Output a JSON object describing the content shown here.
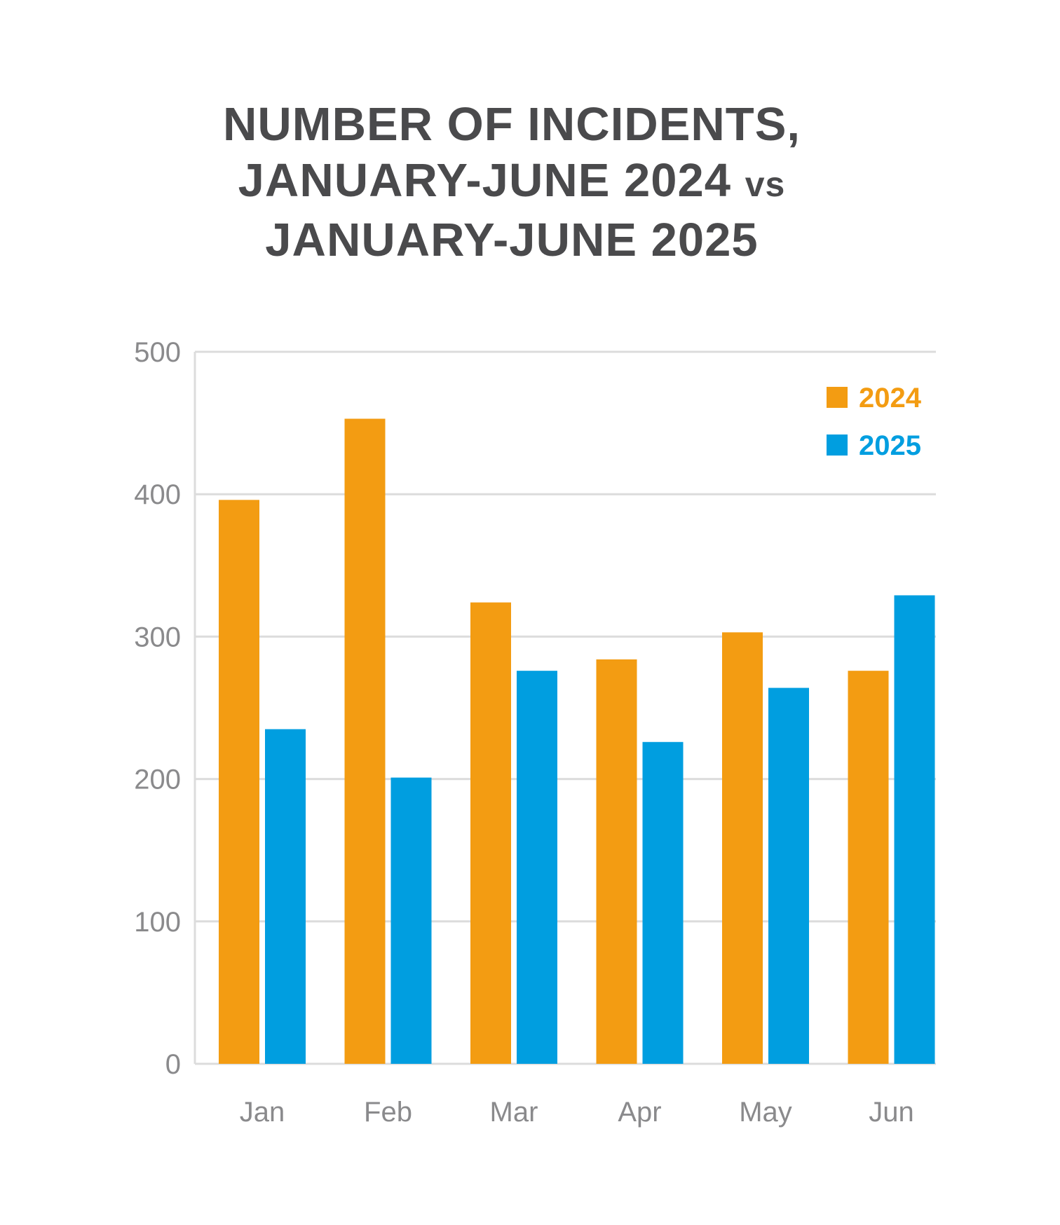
{
  "chart_data": {
    "type": "bar",
    "title": {
      "line1": "NUMBER OF INCIDENTS,",
      "line2_main": "JANUARY-JUNE 2024",
      "line2_vs": "vs",
      "line3": "JANUARY-JUNE 2025"
    },
    "xlabel": "",
    "ylabel": "",
    "categories": [
      "Jan",
      "Feb",
      "Mar",
      "Apr",
      "May",
      "Jun"
    ],
    "series": [
      {
        "name": "2024",
        "color": "#f39c12",
        "values": [
          396,
          453,
          324,
          284,
          303,
          276
        ]
      },
      {
        "name": "2025",
        "color": "#009ee0",
        "values": [
          235,
          201,
          276,
          226,
          264,
          329
        ]
      }
    ],
    "ylim": [
      0,
      500
    ],
    "yticks": [
      0,
      100,
      200,
      300,
      400,
      500
    ],
    "grid": true,
    "legend_position": "top-right",
    "colors": {
      "title": "#4a4a4c",
      "grid": "#dcdcdc",
      "tick_text": "#8a8a8c"
    }
  }
}
